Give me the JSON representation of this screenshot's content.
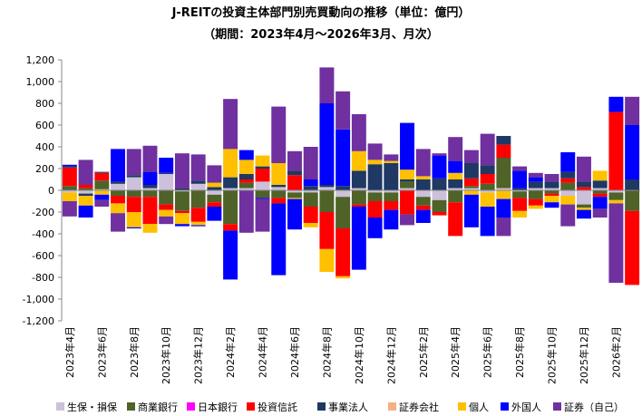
{
  "chart_data": {
    "type": "bar",
    "stacked": true,
    "title": "J-REITの投資主体部門別売買動向の推移（単位：億円）",
    "subtitle": "（期間：2023年4月～2026年3月、月次）",
    "categories": [
      "2023年4月",
      null,
      "2023年6月",
      null,
      "2023年8月",
      null,
      "2023年10月",
      null,
      "2023年12月",
      null,
      "2024年2月",
      null,
      "2024年4月",
      null,
      "2024年6月",
      null,
      "2024年8月",
      null,
      "2024年10月",
      null,
      "2024年12月",
      null,
      "2025年2月",
      null,
      "2025年4月",
      null,
      "2025年6月",
      null,
      "2025年8月",
      null,
      "2025年10月",
      null,
      "2025年12月",
      null,
      "2026年2月",
      null
    ],
    "ylim": [
      -1200,
      1200
    ],
    "yticks": [
      {
        "value": -1200,
        "label": "-1,200"
      },
      {
        "value": -1000,
        "label": "-1,000"
      },
      -800,
      -600,
      -400,
      -200,
      0,
      200,
      400,
      600,
      800,
      {
        "value": 1000,
        "label": "1,000"
      },
      {
        "value": 1200,
        "label": "1,200"
      }
    ],
    "grid": false,
    "series": [
      {
        "name": "生保・損保",
        "color": "#ccc0da",
        "values": [
          -20,
          -30,
          10,
          60,
          120,
          20,
          150,
          -10,
          60,
          -40,
          20,
          20,
          80,
          30,
          -20,
          -20,
          30,
          -60,
          20,
          -20,
          -20,
          20,
          -60,
          -90,
          20,
          20,
          -20,
          20,
          -10,
          20,
          20,
          -50,
          -130,
          20,
          -20,
          0
        ]
      },
      {
        "name": "商業銀行",
        "color": "#4f6228",
        "values": [
          40,
          20,
          80,
          -50,
          -60,
          -60,
          -130,
          -180,
          -160,
          -70,
          -310,
          50,
          -70,
          -70,
          -50,
          -130,
          -200,
          -290,
          -130,
          -80,
          -80,
          60,
          -80,
          -110,
          -110,
          20,
          60,
          280,
          -60,
          -80,
          -30,
          70,
          -30,
          -30,
          -70,
          -190
        ]
      },
      {
        "name": "日本銀行",
        "color": "#ff00ff",
        "values": [
          0,
          0,
          0,
          0,
          0,
          0,
          0,
          0,
          0,
          0,
          0,
          0,
          0,
          0,
          0,
          0,
          0,
          0,
          0,
          0,
          0,
          0,
          0,
          0,
          0,
          0,
          0,
          0,
          0,
          0,
          0,
          0,
          0,
          0,
          0,
          0
        ]
      },
      {
        "name": "投資信託",
        "color": "#ff0000",
        "values": [
          170,
          30,
          70,
          -70,
          -140,
          -250,
          -50,
          -20,
          -130,
          -40,
          -60,
          30,
          120,
          -50,
          140,
          -150,
          -340,
          -440,
          -20,
          -150,
          -80,
          -220,
          -40,
          -30,
          -310,
          70,
          90,
          120,
          -120,
          -60,
          -20,
          40,
          30,
          -30,
          720,
          -680
        ]
      },
      {
        "name": "事業法人",
        "color": "#1f3864",
        "values": [
          10,
          -20,
          10,
          20,
          20,
          30,
          10,
          20,
          30,
          30,
          100,
          50,
          20,
          20,
          40,
          40,
          20,
          40,
          160,
          240,
          250,
          20,
          100,
          110,
          80,
          140,
          80,
          80,
          20,
          60,
          60,
          60,
          50,
          70,
          0,
          100
        ]
      },
      {
        "name": "証券会社",
        "color": "#f4b183",
        "values": [
          0,
          0,
          0,
          0,
          0,
          0,
          0,
          0,
          0,
          0,
          0,
          0,
          0,
          0,
          0,
          0,
          0,
          0,
          0,
          0,
          0,
          0,
          0,
          0,
          0,
          0,
          0,
          0,
          0,
          0,
          0,
          0,
          0,
          0,
          0,
          0
        ]
      },
      {
        "name": "個人",
        "color": "#ffc000",
        "values": [
          -80,
          -90,
          -40,
          -90,
          -140,
          -80,
          -60,
          -100,
          -30,
          40,
          260,
          130,
          100,
          200,
          -10,
          -40,
          -210,
          -20,
          180,
          40,
          20,
          90,
          30,
          0,
          60,
          -40,
          -130,
          -80,
          -60,
          -30,
          -60,
          -80,
          -20,
          90,
          -30,
          0
        ]
      },
      {
        "name": "外国人",
        "color": "#0000ff",
        "values": [
          15,
          -110,
          -50,
          300,
          -10,
          120,
          140,
          -20,
          -10,
          -130,
          -450,
          90,
          -10,
          -660,
          -280,
          60,
          750,
          520,
          -580,
          -190,
          -180,
          430,
          -120,
          210,
          110,
          -300,
          -270,
          -170,
          160,
          40,
          -50,
          180,
          -80,
          -110,
          140,
          500
        ]
      },
      {
        "name": "証券（自己）",
        "color": "#7030a0",
        "values": [
          -140,
          230,
          -60,
          -170,
          240,
          240,
          -70,
          320,
          240,
          160,
          460,
          -390,
          -300,
          520,
          180,
          300,
          330,
          350,
          340,
          150,
          60,
          -100,
          250,
          20,
          220,
          120,
          290,
          -170,
          40,
          40,
          70,
          -200,
          230,
          -80,
          -730,
          260
        ]
      }
    ]
  }
}
